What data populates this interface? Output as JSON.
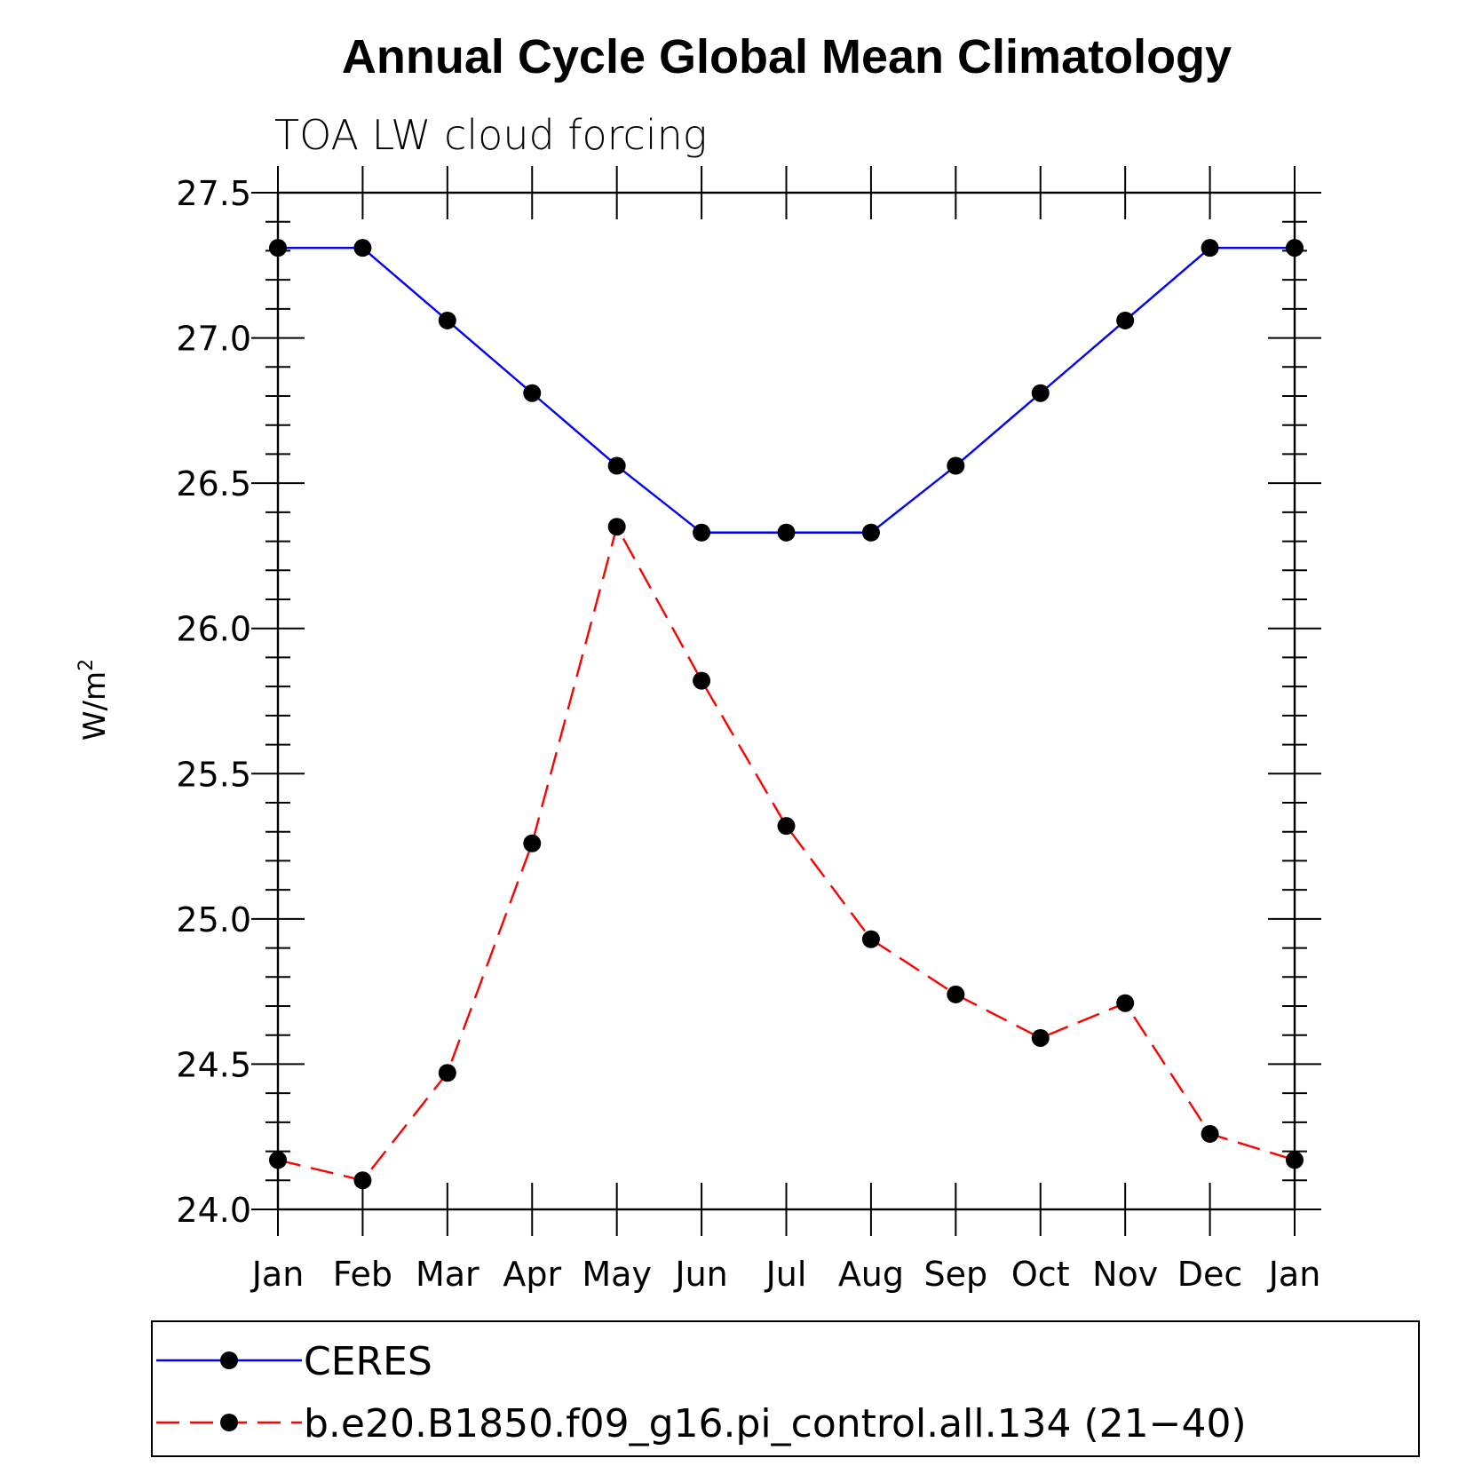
{
  "chart_data": {
    "type": "line",
    "title": "Annual Cycle Global Mean Climatology",
    "subtitle": "TOA LW cloud forcing",
    "xlabel": "",
    "ylabel": "W/m",
    "ylabel_superscript": "2",
    "categories": [
      "Jan",
      "Feb",
      "Mar",
      "Apr",
      "May",
      "Jun",
      "Jul",
      "Aug",
      "Sep",
      "Oct",
      "Nov",
      "Dec",
      "Jan"
    ],
    "ylim": [
      24.0,
      27.5
    ],
    "yticks": [
      "24.0",
      "24.5",
      "25.0",
      "25.5",
      "26.0",
      "26.5",
      "27.0",
      "27.5"
    ],
    "grid": false,
    "legend_position": "bottom",
    "series": [
      {
        "name": "CERES",
        "color": "#0000ff",
        "dash": "solid",
        "marker": "filled-circle",
        "values": [
          27.31,
          27.31,
          27.06,
          26.81,
          26.56,
          26.33,
          26.33,
          26.33,
          26.56,
          26.81,
          27.06,
          27.31,
          27.31
        ]
      },
      {
        "name": "b.e20.B1850.f09_g16.pi_control.all.134 (21−40)",
        "color": "#ff0000",
        "dash": "dashed",
        "marker": "filled-circle",
        "values": [
          24.17,
          24.1,
          24.47,
          25.26,
          26.35,
          25.82,
          25.32,
          24.93,
          24.74,
          24.59,
          24.71,
          24.26,
          24.17
        ]
      }
    ]
  }
}
